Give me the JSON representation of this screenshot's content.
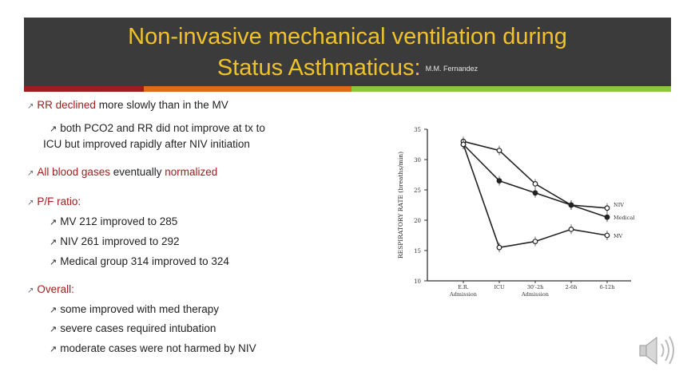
{
  "slide": {
    "title_line1": "Non-invasive mechanical ventilation during",
    "title_line2": "Status Asthmaticus:",
    "author": "M.M. Fernandez",
    "accent_colors": [
      "#a01c1c",
      "#e06a1a",
      "#8dc63f"
    ]
  },
  "bullets": {
    "b1": {
      "red": "RR declined",
      "rest": " more slowly than in the MV"
    },
    "b2": {
      "line1": "both PCO2 and RR did not improve at tx to",
      "line2": "ICU but improved rapidly after NIV initiation"
    },
    "b3": {
      "red1": "All blood gases",
      "mid": " eventually ",
      "red2": "normalized"
    },
    "b4": {
      "red": "P/F ratio:"
    },
    "b5": "MV 212 improved to 285",
    "b6": "NIV 261 improved to 292",
    "b7": "Medical group 314 improved to 324",
    "b8": {
      "red": "Overall:"
    },
    "b9": "some improved with med therapy",
    "b10": "severe cases required intubation",
    "b11": "moderate cases were not harmed by NIV"
  },
  "chart_data": {
    "type": "line",
    "ylabel": "RESPIRATORY RATE (breaths/min)",
    "ylim": [
      10,
      35
    ],
    "yticks": [
      "10",
      "15",
      "20",
      "25",
      "30",
      "35"
    ],
    "categories": [
      "E.R.",
      "ICU",
      "30'-2h",
      "2-6h",
      "6-12h"
    ],
    "xlabel_fragments": [
      "Admission",
      "Admission"
    ],
    "series": [
      {
        "name": "NIV",
        "values": [
          33,
          31.5,
          26,
          22.5,
          22
        ],
        "markers": "open-circle"
      },
      {
        "name": "Medical",
        "values": [
          32.5,
          26.5,
          24.5,
          22.5,
          20.5
        ],
        "markers": "filled-circle"
      },
      {
        "name": "MV",
        "values": [
          32.5,
          15.5,
          16.5,
          18.5,
          17.5
        ],
        "markers": "open-circle"
      }
    ],
    "grid": false,
    "legend_placement": "right"
  },
  "icons": {
    "speaker": "speaker-icon"
  }
}
